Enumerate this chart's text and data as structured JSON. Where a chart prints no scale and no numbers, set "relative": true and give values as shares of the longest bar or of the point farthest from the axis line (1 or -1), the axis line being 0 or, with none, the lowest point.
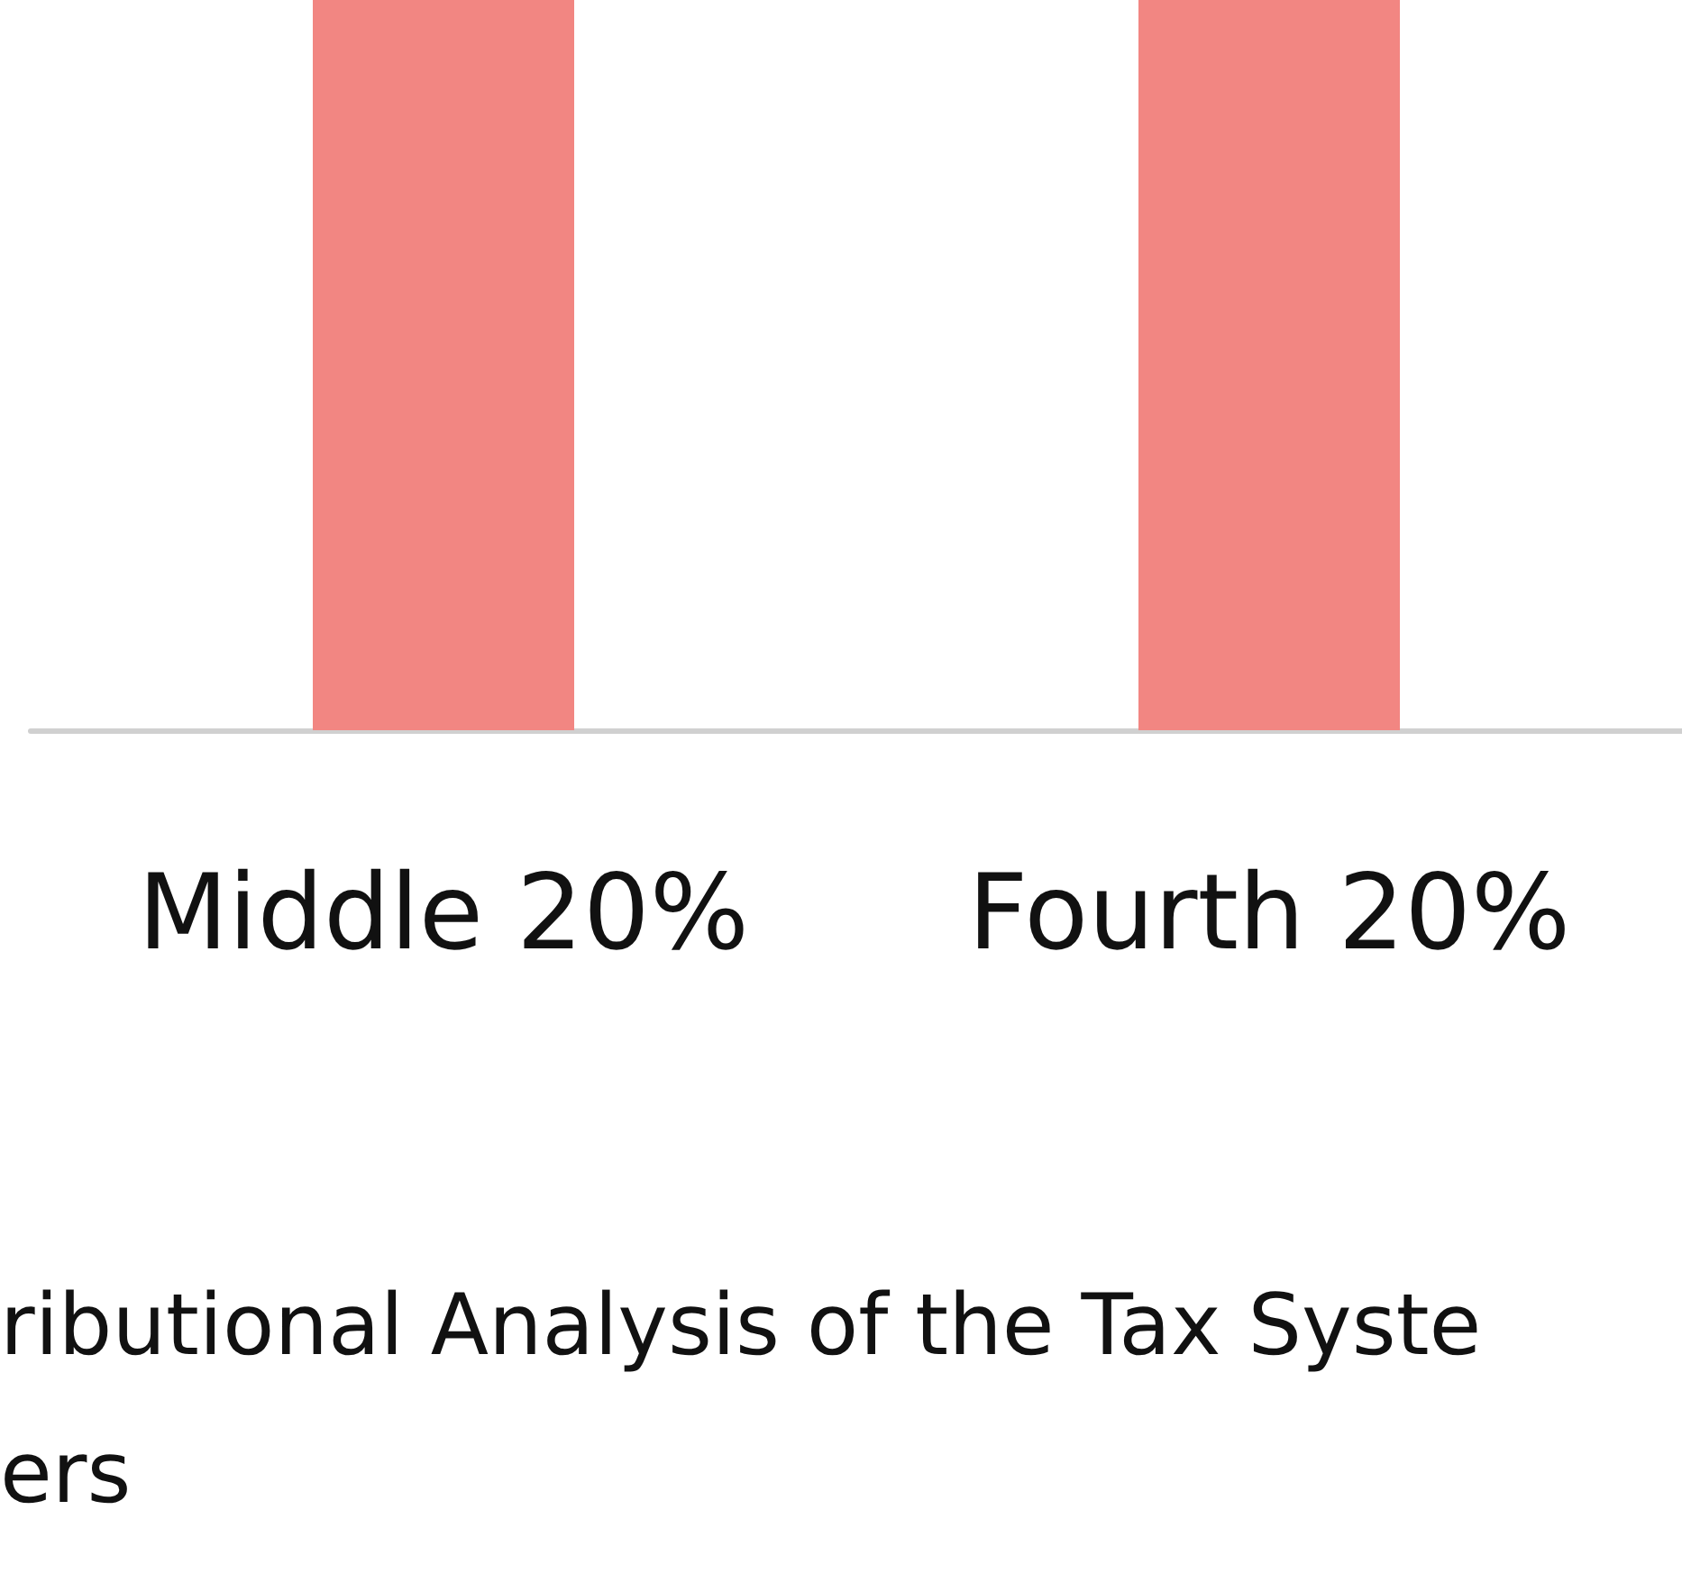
{
  "chart_data": {
    "type": "bar",
    "relative": true,
    "categories": [
      "Middle 20%",
      "Fourth 20%"
    ],
    "values": [
      1,
      1
    ],
    "color": "#f28682",
    "annotations": [
      "ributional Analysis of the Tax Syste",
      "ers"
    ]
  }
}
